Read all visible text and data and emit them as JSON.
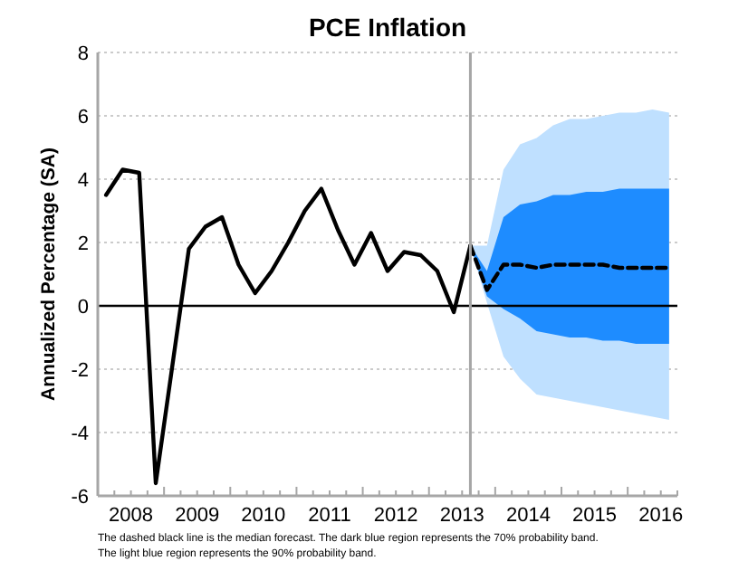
{
  "chart_data": {
    "type": "line",
    "title": "PCE Inflation",
    "ylabel": "Annualized Percentage (SA)",
    "annotations": [
      "The dashed black line is the median forecast. The dark blue region represents the 70% probability band.",
      "The light blue region represents the 90% probability band."
    ],
    "xlim": [
      2008,
      2016.75
    ],
    "ylim": [
      -6,
      8
    ],
    "yticks": [
      -6,
      -4,
      -2,
      0,
      2,
      4,
      6,
      8
    ],
    "grid": "y",
    "xticks": [
      {
        "value": 2008,
        "label": null
      },
      {
        "value": 2008.25,
        "label": null
      },
      {
        "value": 2008.5,
        "label": "2008"
      },
      {
        "value": 2008.75,
        "label": null
      },
      {
        "value": 2009,
        "label": null
      },
      {
        "value": 2009.25,
        "label": null
      },
      {
        "value": 2009.5,
        "label": "2009"
      },
      {
        "value": 2009.75,
        "label": null
      },
      {
        "value": 2010,
        "label": null
      },
      {
        "value": 2010.25,
        "label": null
      },
      {
        "value": 2010.5,
        "label": "2010"
      },
      {
        "value": 2010.75,
        "label": null
      },
      {
        "value": 2011,
        "label": null
      },
      {
        "value": 2011.25,
        "label": null
      },
      {
        "value": 2011.5,
        "label": "2011"
      },
      {
        "value": 2011.75,
        "label": null
      },
      {
        "value": 2012,
        "label": null
      },
      {
        "value": 2012.25,
        "label": null
      },
      {
        "value": 2012.5,
        "label": "2012"
      },
      {
        "value": 2012.75,
        "label": null
      },
      {
        "value": 2013,
        "label": null
      },
      {
        "value": 2013.25,
        "label": null
      },
      {
        "value": 2013.5,
        "label": "2013"
      },
      {
        "value": 2013.75,
        "label": null
      },
      {
        "value": 2014,
        "label": null
      },
      {
        "value": 2014.25,
        "label": null
      },
      {
        "value": 2014.5,
        "label": "2014"
      },
      {
        "value": 2014.75,
        "label": null
      },
      {
        "value": 2015,
        "label": null
      },
      {
        "value": 2015.25,
        "label": null
      },
      {
        "value": 2015.5,
        "label": "2015"
      },
      {
        "value": 2015.75,
        "label": null
      },
      {
        "value": 2016,
        "label": null
      },
      {
        "value": 2016.25,
        "label": null
      },
      {
        "value": 2016.5,
        "label": "2016"
      },
      {
        "value": 2016.75,
        "label": null
      }
    ],
    "ref_lines": [
      {
        "axis": "y",
        "value": 0,
        "color": "#000000",
        "line_style": "solid"
      },
      {
        "axis": "x",
        "value": 2013.625,
        "color": "#a6a6a6",
        "line_style": "solid"
      }
    ],
    "series": [
      {
        "color": "#bfe0ff",
        "x": [
          2013.625,
          2013.875,
          2014.125,
          2014.375,
          2014.625,
          2014.875,
          2015.125,
          2015.375,
          2015.625,
          2015.875,
          2016.125,
          2016.375,
          2016.625
        ],
        "values": [
          null,
          null,
          null,
          null,
          null,
          null,
          null,
          null,
          null,
          null,
          null,
          null,
          null
        ],
        "upper": [
          1.9,
          1.9,
          4.3,
          5.1,
          5.3,
          5.7,
          5.9,
          5.9,
          6.0,
          6.1,
          6.1,
          6.2,
          6.1
        ],
        "lower": [
          1.9,
          0.1,
          -1.6,
          -2.3,
          -2.8,
          -2.9,
          -3.0,
          -3.1,
          -3.2,
          -3.3,
          -3.4,
          -3.5,
          -3.6
        ]
      },
      {
        "color": "#1e8cff",
        "x": [
          2013.625,
          2013.875,
          2014.125,
          2014.375,
          2014.625,
          2014.875,
          2015.125,
          2015.375,
          2015.625,
          2015.875,
          2016.125,
          2016.375,
          2016.625
        ],
        "values": [
          null,
          null,
          null,
          null,
          null,
          null,
          null,
          null,
          null,
          null,
          null,
          null,
          null
        ],
        "upper": [
          1.9,
          1.1,
          2.8,
          3.2,
          3.3,
          3.5,
          3.5,
          3.6,
          3.6,
          3.7,
          3.7,
          3.7,
          3.7
        ],
        "lower": [
          1.9,
          0.3,
          -0.1,
          -0.4,
          -0.8,
          -0.9,
          -1.0,
          -1.0,
          -1.1,
          -1.1,
          -1.2,
          -1.2,
          -1.2
        ]
      },
      {
        "color": "#000000",
        "line_style": "solid",
        "x": [
          2008.125,
          2008.375,
          2008.625,
          2008.875,
          2009.125,
          2009.375,
          2009.625,
          2009.875,
          2010.125,
          2010.375,
          2010.625,
          2010.875,
          2011.125,
          2011.375,
          2011.625,
          2011.875,
          2012.125,
          2012.375,
          2012.625,
          2012.875,
          2013.125,
          2013.375,
          2013.625
        ],
        "values": [
          3.5,
          4.3,
          4.2,
          -5.6,
          -1.9,
          1.8,
          2.5,
          2.8,
          1.3,
          0.4,
          1.1,
          2.0,
          3.0,
          3.7,
          2.4,
          1.3,
          2.3,
          1.1,
          1.7,
          1.6,
          1.1,
          -0.2,
          1.9
        ]
      },
      {
        "color": "#000000",
        "line_style": "dashed",
        "x": [
          2013.625,
          2013.875,
          2014.125,
          2014.375,
          2014.625,
          2014.875,
          2015.125,
          2015.375,
          2015.625,
          2015.875,
          2016.125,
          2016.375,
          2016.625
        ],
        "values": [
          1.9,
          0.5,
          1.3,
          1.3,
          1.2,
          1.3,
          1.3,
          1.3,
          1.3,
          1.2,
          1.2,
          1.2,
          1.2
        ]
      }
    ]
  }
}
